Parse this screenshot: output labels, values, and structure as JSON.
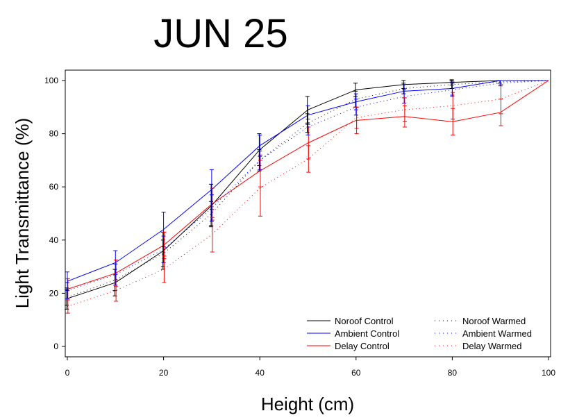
{
  "chart_data": {
    "type": "line",
    "title": "JUN 25",
    "xlabel": "Height (cm)",
    "ylabel": "Light Transmittance (%)",
    "xlim": [
      0,
      100
    ],
    "ylim": [
      -4,
      104
    ],
    "x_ticks": [
      0,
      20,
      40,
      60,
      80,
      100
    ],
    "y_ticks": [
      0,
      20,
      40,
      60,
      80,
      100
    ],
    "grid": false,
    "legend_position": "bottom-right",
    "series": [
      {
        "name": "Noroof Control",
        "color": "#000000",
        "style": "solid",
        "x": [
          0,
          10,
          20,
          30,
          40,
          50,
          60,
          70,
          80,
          90,
          100
        ],
        "y": [
          18,
          24,
          36,
          53,
          74,
          89,
          96.5,
          98.5,
          99.3,
          100,
          100
        ],
        "err": [
          4,
          5,
          7,
          8,
          6,
          5,
          2.5,
          1.5,
          1,
          0,
          0
        ]
      },
      {
        "name": "Ambient Control",
        "color": "#0000ff",
        "style": "solid",
        "x": [
          0,
          10,
          20,
          30,
          40,
          50,
          60,
          70,
          80,
          90,
          100
        ],
        "y": [
          24.5,
          31.5,
          44,
          59,
          75.5,
          87,
          92,
          96,
          97,
          100,
          100
        ],
        "err": [
          3.5,
          4.5,
          6.5,
          7.5,
          4,
          3.5,
          3,
          2.5,
          2.5,
          0,
          0
        ]
      },
      {
        "name": "Delay Control",
        "color": "#ff0000",
        "style": "solid",
        "x": [
          0,
          10,
          20,
          30,
          40,
          50,
          60,
          70,
          80,
          90,
          100
        ],
        "y": [
          21.5,
          27.5,
          38,
          53.5,
          66,
          76.5,
          85,
          86.5,
          84.5,
          88,
          100
        ],
        "err": [
          4,
          5,
          5,
          6,
          6,
          6,
          5,
          4,
          5,
          5,
          0
        ]
      },
      {
        "name": "Noroof Warmed",
        "color": "#000000",
        "style": "dotted",
        "x": [
          0,
          10,
          20,
          30,
          40,
          50,
          60,
          70,
          80,
          90,
          100
        ],
        "y": [
          18.5,
          25,
          35,
          50,
          70,
          84,
          93,
          97,
          98.5,
          99.5,
          100
        ],
        "err": [
          3,
          4,
          5,
          4.5,
          4,
          3.5,
          3,
          2,
          1.5,
          0.5,
          0
        ]
      },
      {
        "name": "Ambient Warmed",
        "color": "#0000ff",
        "style": "dotted",
        "x": [
          0,
          10,
          20,
          30,
          40,
          50,
          60,
          70,
          80,
          90,
          100
        ],
        "y": [
          21,
          27,
          36.5,
          52,
          70,
          82.5,
          90,
          94,
          96.5,
          99,
          100
        ],
        "err": [
          3,
          4,
          5,
          5,
          3.5,
          3,
          3,
          2.5,
          2.5,
          1,
          0
        ]
      },
      {
        "name": "Delay Warmed",
        "color": "#ff0000",
        "style": "dotted",
        "x": [
          0,
          10,
          20,
          30,
          40,
          50,
          60,
          70,
          80,
          90,
          100
        ],
        "y": [
          15,
          21,
          29,
          42,
          59.5,
          70.5,
          86,
          89,
          90.5,
          93,
          100
        ],
        "err": [
          2.5,
          4,
          5,
          6.5,
          10.5,
          5,
          4,
          4.5,
          5,
          5.5,
          0
        ]
      }
    ]
  }
}
